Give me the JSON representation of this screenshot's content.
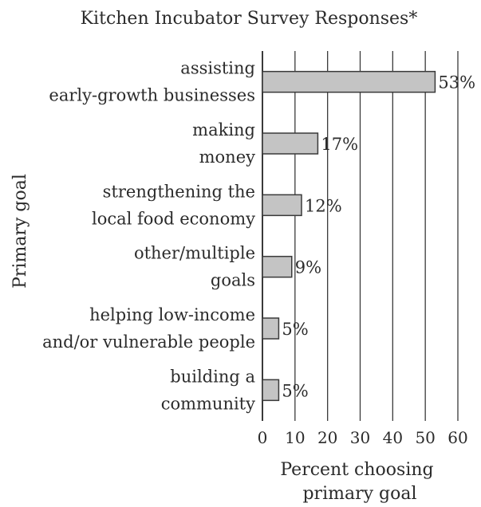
{
  "chart_data": {
    "type": "bar",
    "orientation": "horizontal",
    "title": "Kitchen Incubator Survey Responses*",
    "ylabel": "Primary goal",
    "xlabel_lines": [
      "Percent choosing",
      "primary goal"
    ],
    "categories": [
      [
        "assisting",
        "early-growth businesses"
      ],
      [
        "making",
        "money"
      ],
      [
        "strengthening the",
        "local food economy"
      ],
      [
        "other/multiple",
        "goals"
      ],
      [
        "helping low-income",
        "and/or vulnerable people"
      ],
      [
        "building a",
        "community"
      ]
    ],
    "values": [
      53,
      17,
      12,
      9,
      5,
      5
    ],
    "value_labels": [
      "53%",
      "17%",
      "12%",
      "9%",
      "5%",
      "5%"
    ],
    "xlim": [
      0,
      60
    ],
    "xticks": [
      0,
      10,
      20,
      30,
      40,
      50,
      60
    ],
    "grid": "vertical",
    "colors": {
      "bar_fill": "#c4c4c4",
      "bar_stroke": "#3a3a3a",
      "grid": "#3a3a3a",
      "text": "#2b2b2b"
    }
  }
}
